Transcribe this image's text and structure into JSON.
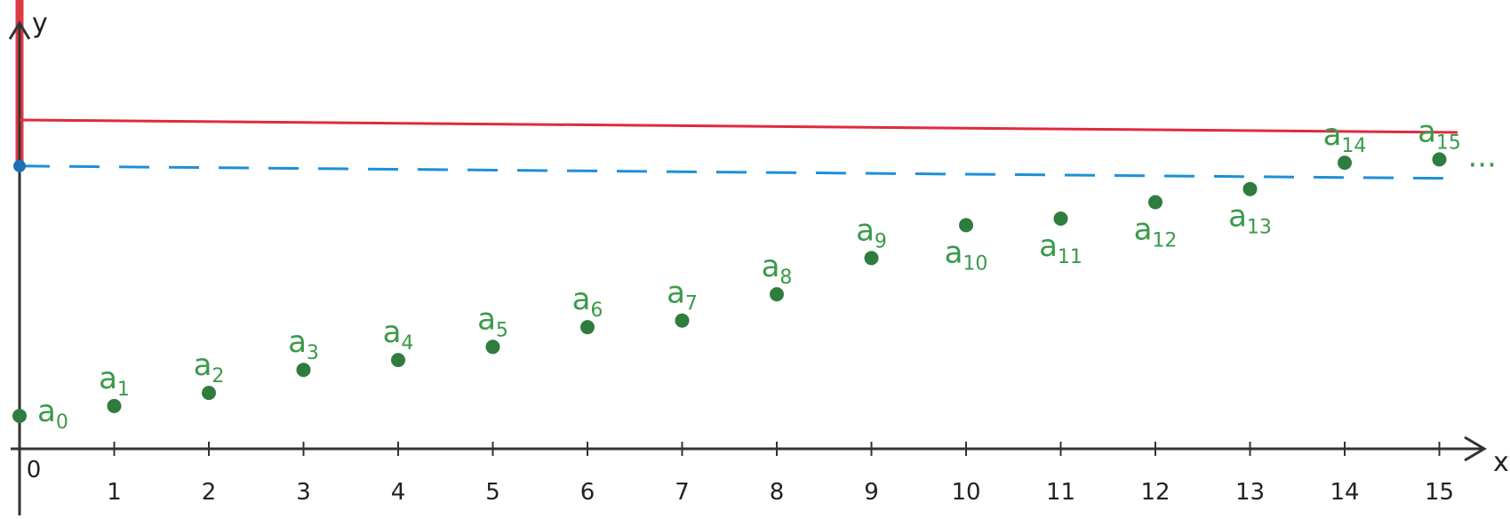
{
  "chart_data": {
    "type": "scatter",
    "xlabel": "x",
    "ylabel": "y",
    "xlim": [
      0,
      16
    ],
    "ylim": [
      0,
      1
    ],
    "x_ticks": [
      "0",
      "1",
      "2",
      "3",
      "4",
      "5",
      "6",
      "7",
      "8",
      "9",
      "10",
      "11",
      "12",
      "13",
      "14",
      "15"
    ],
    "series": [
      {
        "point_labels": [
          "a0",
          "a1",
          "a2",
          "a3",
          "a4",
          "a5",
          "a6",
          "a7",
          "a8",
          "a9",
          "a10",
          "a11",
          "a12",
          "a13",
          "a14",
          "a15"
        ],
        "x": [
          0,
          1,
          2,
          3,
          4,
          5,
          6,
          7,
          8,
          9,
          10,
          11,
          12,
          13,
          14,
          15
        ],
        "y": [
          0.1,
          0.13,
          0.17,
          0.24,
          0.27,
          0.31,
          0.37,
          0.39,
          0.47,
          0.58,
          0.68,
          0.7,
          0.75,
          0.79,
          0.87,
          0.88
        ],
        "color": "#2e7d3e"
      }
    ],
    "reference_lines": [
      {
        "y": 1.0,
        "style": "solid",
        "color": "#e02a3c"
      },
      {
        "y": 0.86,
        "style": "dashed",
        "color": "#1f8fd6"
      }
    ],
    "marked_point_on_y_axis": {
      "y": 0.86,
      "color": "#1f6fb8"
    },
    "y_axis_highlight": {
      "from": 0.86,
      "to": 1.45,
      "color": "#d9282d"
    },
    "trailing_mark": "..."
  }
}
